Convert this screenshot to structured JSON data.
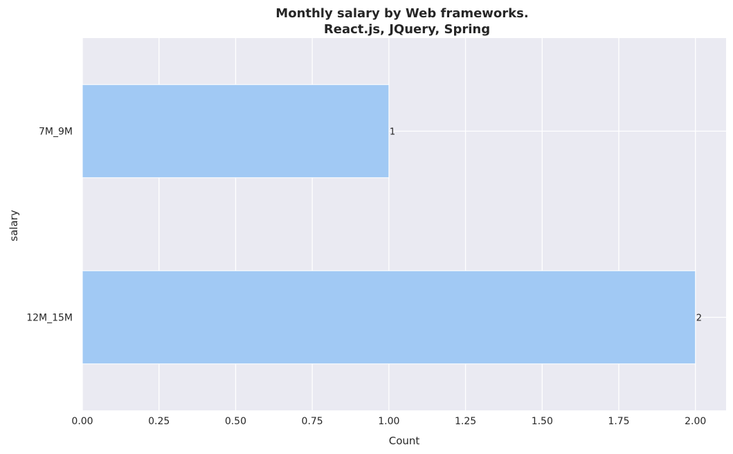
{
  "chart_data": {
    "type": "bar",
    "orientation": "horizontal",
    "title": [
      "Monthly salary by Web frameworks.",
      "React.js, JQuery, Spring"
    ],
    "xlabel": "Count",
    "ylabel": "salary",
    "categories": [
      "7M_9M",
      "12M_15M"
    ],
    "values": [
      1,
      2
    ],
    "data_labels": [
      "1",
      "2"
    ],
    "xlim": [
      0,
      2.1
    ],
    "xticks": [
      0,
      0.25,
      0.5,
      0.75,
      1.0,
      1.25,
      1.5,
      1.75,
      2.0
    ],
    "xtick_labels": [
      "0.00",
      "0.25",
      "0.50",
      "0.75",
      "1.00",
      "1.25",
      "1.50",
      "1.75",
      "2.00"
    ],
    "grid": true,
    "colors": {
      "bar": "#a1c9f4",
      "plot_background": "#eaeaf2",
      "grid": "#ffffff",
      "text": "#262626"
    }
  }
}
